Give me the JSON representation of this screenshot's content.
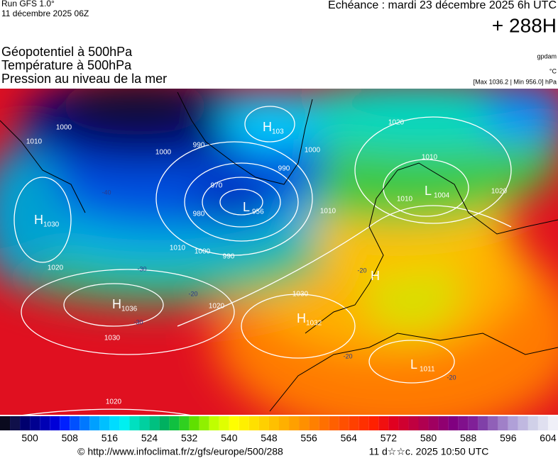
{
  "header": {
    "run": "Run GFS 1.0°",
    "date": "11 décembre 2025 06Z",
    "valid": "Echéance : mardi 23 décembre 2025 6h UTC",
    "lead": "+ 288H"
  },
  "layers": [
    "Géopotentiel à 500hPa",
    "Température à 500hPa",
    "Pression au niveau de la mer"
  ],
  "units": [
    "gpdam",
    "°C",
    "[Max 1036.2 | Min 956.0] hPa"
  ],
  "centers": [
    {
      "letter": "H",
      "value": "1030"
    },
    {
      "letter": "H",
      "value": "1036"
    },
    {
      "letter": "H",
      "value": "1032"
    },
    {
      "letter": "L",
      "value": "956"
    },
    {
      "letter": "L",
      "value": "1004"
    },
    {
      "letter": "L",
      "value": "1011"
    },
    {
      "letter": "H"
    },
    {
      "letter": "H",
      "value": "103"
    }
  ],
  "isobar_labels": [
    "1000",
    "1010",
    "990",
    "1000",
    "970",
    "980",
    "1000",
    "1010",
    "990",
    "1020",
    "1030",
    "1030",
    "1020",
    "1010",
    "1000",
    "990",
    "1020",
    "1010",
    "1010",
    "1020",
    "1020"
  ],
  "temperature_labels": [
    "-30",
    "-20",
    "-40",
    "-30",
    "-20",
    "-20",
    "-20"
  ],
  "colorbar": {
    "range": [
      494,
      606
    ],
    "ticks": [
      500,
      508,
      516,
      524,
      532,
      540,
      548,
      556,
      564,
      572,
      580,
      588,
      596,
      604
    ],
    "colors": [
      "#0a0a1e",
      "#10104a",
      "#00006e",
      "#000090",
      "#0000b4",
      "#0000d8",
      "#0020ff",
      "#0050ff",
      "#0078ff",
      "#00a0ff",
      "#00c0ff",
      "#00dcff",
      "#00f0f0",
      "#00e0c0",
      "#00d0a0",
      "#00c080",
      "#00b060",
      "#10c040",
      "#30d020",
      "#60e000",
      "#90f000",
      "#c0ff00",
      "#e0ff00",
      "#ffff00",
      "#fff000",
      "#ffe000",
      "#ffd000",
      "#ffc000",
      "#ffb000",
      "#ffa000",
      "#ff9000",
      "#ff8000",
      "#ff7000",
      "#ff6000",
      "#ff5000",
      "#ff4000",
      "#ff3000",
      "#ff2000",
      "#f01010",
      "#e00020",
      "#d00030",
      "#c00040",
      "#b00050",
      "#a00060",
      "#900070",
      "#800080",
      "#80108c",
      "#802098",
      "#8040a8",
      "#9060b8",
      "#a080c8",
      "#b0a0d8",
      "#c0b8e0",
      "#d0d0e8",
      "#e0e0f0",
      "#f0f0f8"
    ]
  },
  "footer": {
    "source": "© http://www.infoclimat.fr/z/gfs/europe/500/288",
    "stamp": "11 d☆☆c. 2025 10:50 UTC"
  }
}
